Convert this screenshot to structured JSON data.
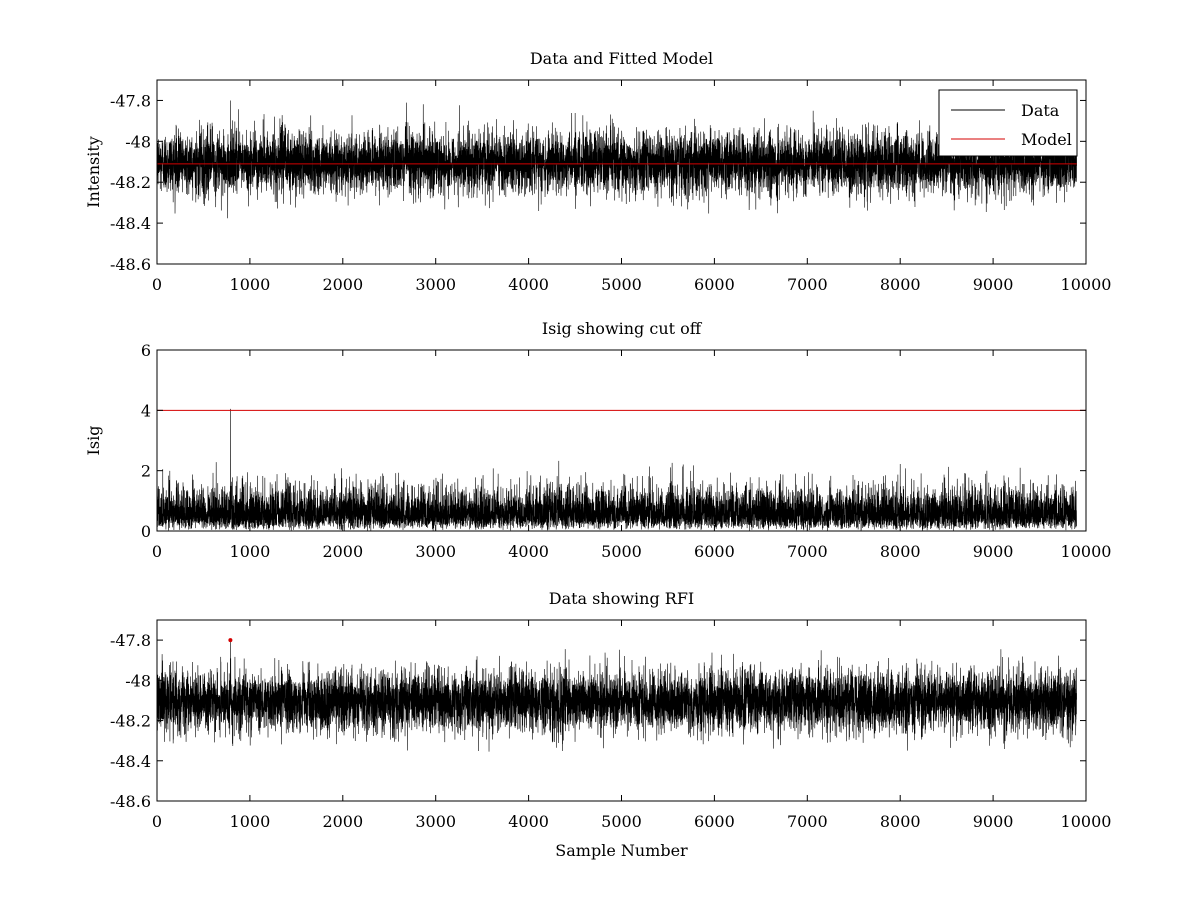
{
  "chart_data": [
    {
      "type": "line",
      "title": "Data and Fitted Model",
      "xlabel": "",
      "ylabel": "Intensity",
      "xlim": [
        0,
        10000
      ],
      "ylim": [
        -48.6,
        -47.7
      ],
      "xticks": [
        0,
        1000,
        2000,
        3000,
        4000,
        5000,
        6000,
        7000,
        8000,
        9000,
        10000
      ],
      "yticks": [
        -47.8,
        -48,
        -48.2,
        -48.4,
        -48.6
      ],
      "legend_position": "top-right",
      "series": [
        {
          "name": "Data",
          "color": "#000000",
          "kind": "noise",
          "n": 9900,
          "mean": -48.105,
          "spread": 0.075,
          "min": -48.38,
          "max": -47.8,
          "spike_x": 790,
          "spike_y": -47.8
        },
        {
          "name": "Model",
          "color": "#d40000",
          "kind": "flat",
          "x": [
            0,
            9900
          ],
          "values": [
            -48.11,
            -48.11
          ]
        }
      ]
    },
    {
      "type": "line",
      "title": "Isig showing cut off",
      "xlabel": "",
      "ylabel": "Isig",
      "xlim": [
        0,
        10000
      ],
      "ylim": [
        0,
        6
      ],
      "xticks": [
        0,
        1000,
        2000,
        3000,
        4000,
        5000,
        6000,
        7000,
        8000,
        9000,
        10000
      ],
      "yticks": [
        0,
        2,
        4,
        6
      ],
      "series": [
        {
          "kind": "noise-abs",
          "color": "#000000",
          "n": 9900,
          "mean": 0.8,
          "spread": 0.6,
          "min": 0,
          "max": 4.0,
          "spike_x": 790,
          "spike_y": 4.05
        },
        {
          "kind": "cutoff",
          "color": "#d40000",
          "x": [
            0,
            10000
          ],
          "values": [
            4,
            4
          ]
        }
      ]
    },
    {
      "type": "line",
      "title": "Data showing RFI",
      "xlabel": "Sample Number",
      "ylabel": "",
      "xlim": [
        0,
        10000
      ],
      "ylim": [
        -48.6,
        -47.7
      ],
      "xticks": [
        0,
        1000,
        2000,
        3000,
        4000,
        5000,
        6000,
        7000,
        8000,
        9000,
        10000
      ],
      "yticks": [
        -47.8,
        -48,
        -48.2,
        -48.4,
        -48.6
      ],
      "series": [
        {
          "kind": "noise",
          "color": "#000000",
          "n": 9900,
          "mean": -48.105,
          "spread": 0.075,
          "min": -48.38,
          "max": -47.84,
          "spike_x": 790,
          "spike_y": -47.8
        },
        {
          "kind": "rfi-points",
          "color": "#d40000",
          "x": [
            790
          ],
          "values": [
            -47.8
          ]
        }
      ]
    }
  ]
}
